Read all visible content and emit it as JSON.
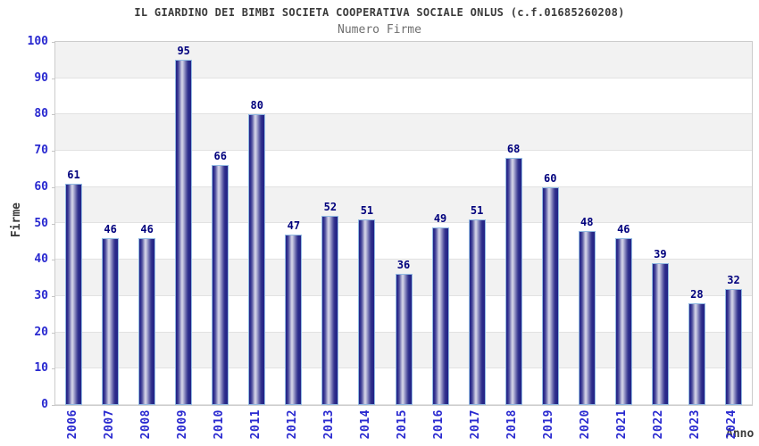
{
  "header": {
    "title": "IL GIARDINO DEI BIMBI SOCIETA COOPERATIVA SOCIALE ONLUS (c.f.01685260208)",
    "subtitle": "Numero Firme"
  },
  "chart_data": {
    "type": "bar",
    "title": "Numero Firme",
    "categories": [
      "2006",
      "2007",
      "2008",
      "2009",
      "2010",
      "2011",
      "2012",
      "2013",
      "2014",
      "2015",
      "2016",
      "2017",
      "2018",
      "2019",
      "2020",
      "2021",
      "2022",
      "2023",
      "2024"
    ],
    "values": [
      61,
      46,
      46,
      95,
      66,
      80,
      47,
      52,
      51,
      36,
      49,
      51,
      68,
      60,
      48,
      46,
      39,
      28,
      32
    ],
    "xlabel": "Anno",
    "ylabel": "Firme",
    "ylim": [
      0,
      100
    ],
    "ytick_step": 10,
    "yticks": [
      0,
      10,
      20,
      30,
      40,
      50,
      60,
      70,
      80,
      90,
      100
    ],
    "grid": "alternating-horizontal-bands",
    "legend": "none",
    "colors": {
      "bar_dark": "#232387",
      "bar_highlight": "#cfcfe4",
      "bar_border": "#92bae2",
      "axis_tick_label": "#2a2ad0",
      "value_label": "#00007d",
      "band_gray": "#f2f2f2",
      "band_white": "#ffffff",
      "plot_border": "#cccccc",
      "title_color": "#3b3b3b",
      "subtitle_color": "#6f6f6f",
      "axis_title_color": "#3b3b3b"
    }
  }
}
